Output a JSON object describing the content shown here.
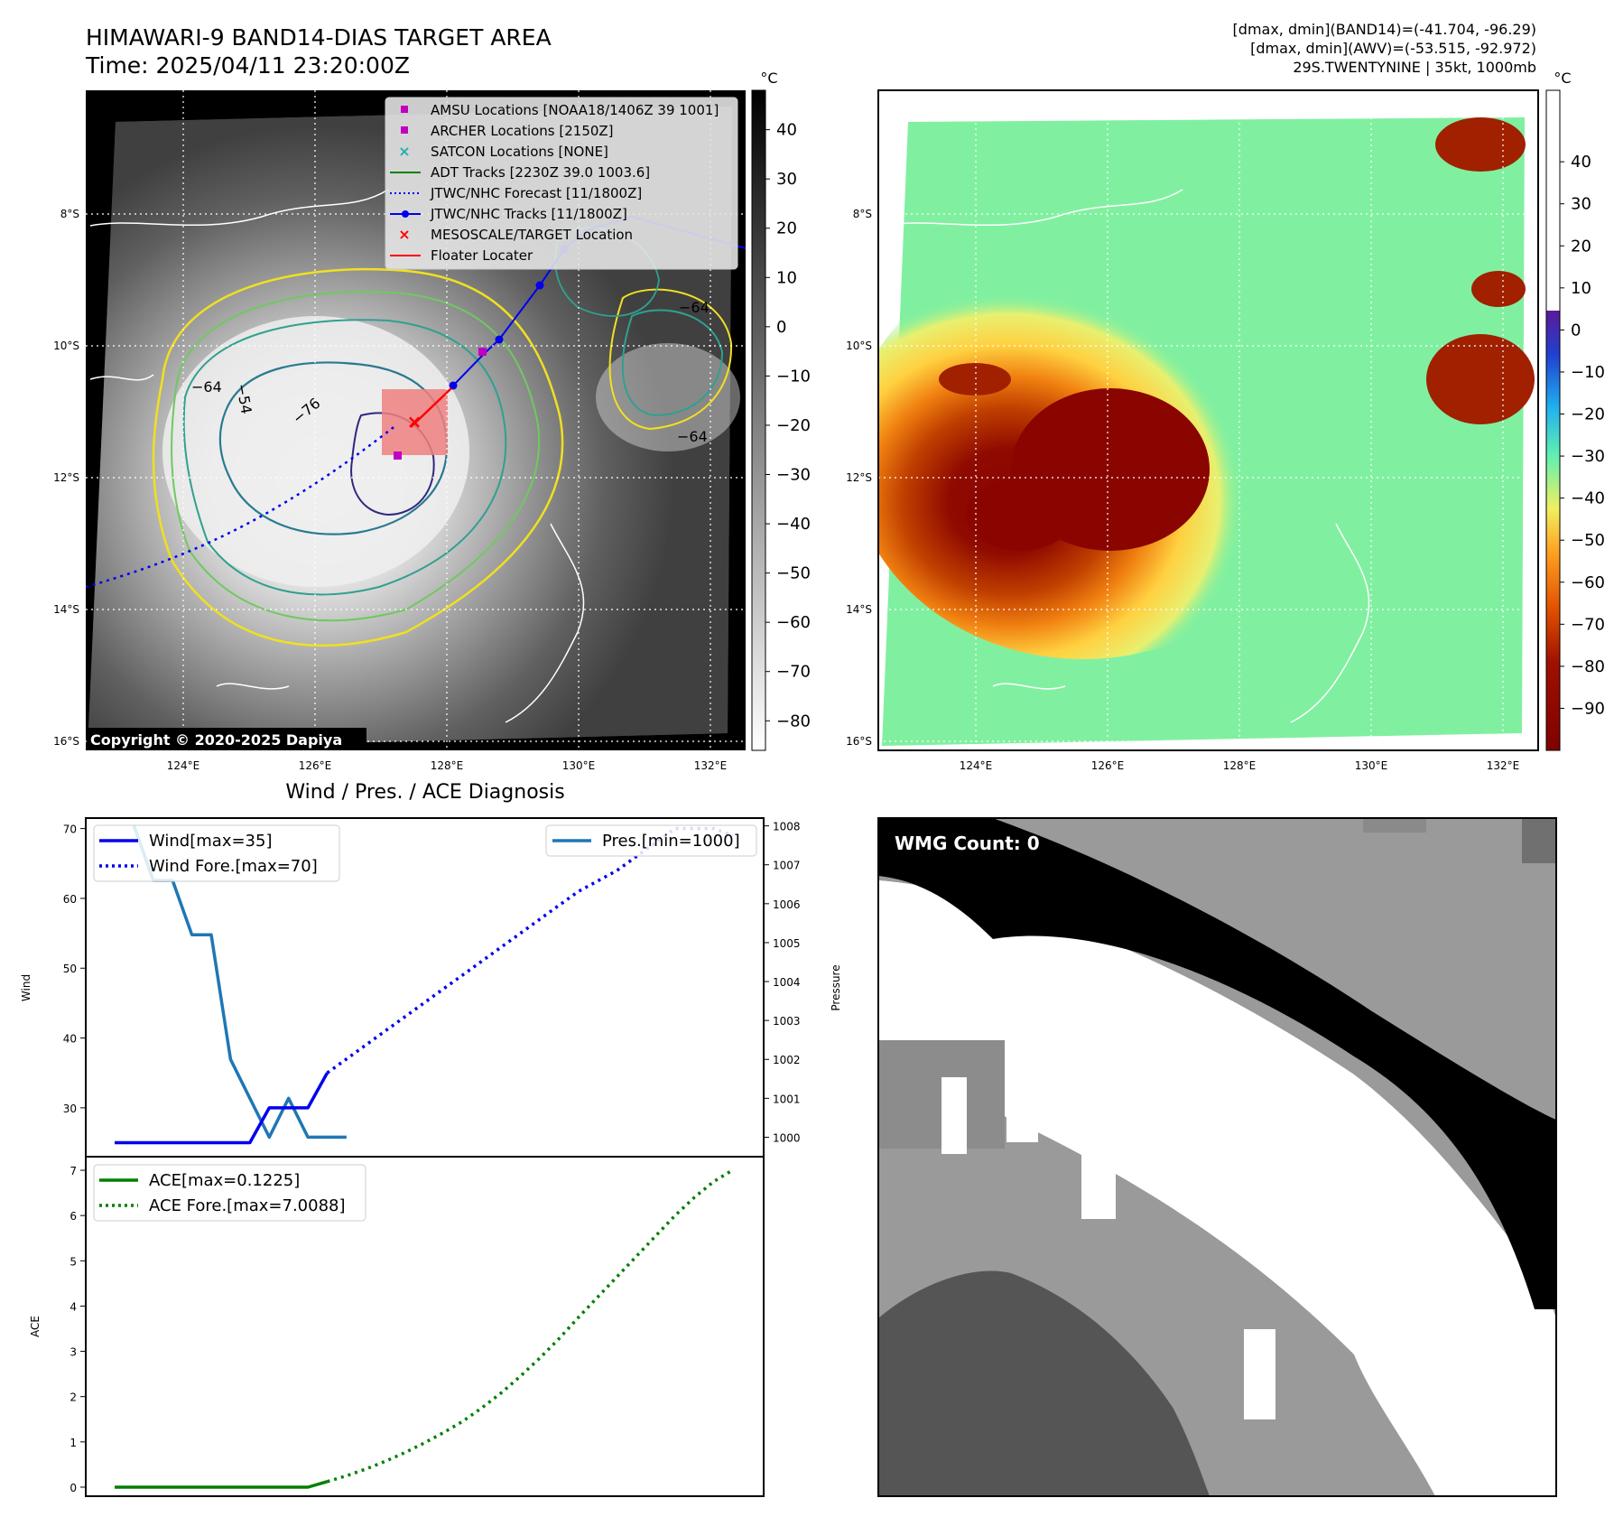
{
  "header": {
    "title_line1": "HIMAWARI-9 BAND14-DIAS TARGET AREA",
    "title_line2": "Time: 2025/04/11 23:20:00Z",
    "info_line1": "[dmax, dmin](BAND14)=(-41.704, -96.29)",
    "info_line2": "[dmax, dmin](AWV)=(-53.515, -92.972)",
    "info_line3": "29S.TWENTYNINE | 35kt, 1000mb"
  },
  "ir_panel": {
    "cb_unit": "°C",
    "cb_ticks": [
      "40",
      "30",
      "20",
      "10",
      "0",
      "−10",
      "−20",
      "−30",
      "−40",
      "−50",
      "−60",
      "−70",
      "−80"
    ],
    "lat_labels": [
      "8°S",
      "10°S",
      "12°S",
      "14°S",
      "16°S"
    ],
    "lon_labels": [
      "124°E",
      "126°E",
      "128°E",
      "130°E",
      "132°E"
    ],
    "copyright": "Copyright © 2020-2025 Dapiya",
    "contour_labels": [
      "−64",
      "−76",
      "−54",
      "−64",
      "−64"
    ],
    "legend": [
      {
        "label": "AMSU Locations [NOAA18/1406Z 39 1001]",
        "marker": "square",
        "color": "#c000c0"
      },
      {
        "label": "ARCHER Locations [2150Z]",
        "marker": "square",
        "color": "#c000c0"
      },
      {
        "label": "SATCON Locations [NONE]",
        "marker": "x",
        "color": "#20b0b0"
      },
      {
        "label": "ADT Tracks [2230Z 39.0 1003.6]",
        "marker": "line",
        "color": "#008000"
      },
      {
        "label": "JTWC/NHC Forecast [11/1800Z]",
        "marker": "dotted",
        "color": "#0000ff"
      },
      {
        "label": "JTWC/NHC Tracks [11/1800Z]",
        "marker": "line-dot",
        "color": "#0000ff"
      },
      {
        "label": "MESOSCALE/TARGET Location",
        "marker": "x",
        "color": "#ff0000"
      },
      {
        "label": "Floater Locater",
        "marker": "line",
        "color": "#ff0000"
      }
    ]
  },
  "awv_panel": {
    "cb_unit": "°C",
    "cb_ticks": [
      "40",
      "30",
      "20",
      "10",
      "0",
      "−10",
      "−20",
      "−30",
      "−40",
      "−50",
      "−60",
      "−70",
      "−80",
      "−90"
    ],
    "lat_labels": [
      "8°S",
      "10°S",
      "12°S",
      "14°S",
      "16°S"
    ],
    "lon_labels": [
      "124°E",
      "126°E",
      "128°E",
      "130°E",
      "132°E"
    ]
  },
  "diag_panel": {
    "title": "Wind / Pres. / ACE Diagnosis",
    "wind_ylabel": "Wind",
    "pres_ylabel": "Pressure",
    "ace_ylabel": "ACE",
    "legend_wind": "Wind[max=35]",
    "legend_wind_fore": "Wind Fore.[max=70]",
    "legend_pres": "Pres.[min=1000]",
    "legend_ace": "ACE[max=0.1225]",
    "legend_ace_fore": "ACE Fore.[max=7.0088]",
    "colors": {
      "wind": "#0000ee",
      "pres": "#1f77b4",
      "ace": "#008000"
    }
  },
  "wmg_panel": {
    "label": "WMG Count: 0"
  },
  "chart_data": [
    {
      "type": "line",
      "title": "Wind / Pres. / ACE Diagnosis",
      "ylabel": "Wind",
      "ylim": [
        23,
        71.5
      ],
      "y_ticks": [
        30,
        40,
        50,
        60,
        70
      ],
      "series": [
        {
          "name": "Wind[max=35]",
          "style": "solid",
          "x": [
            0,
            1,
            2,
            3,
            4,
            5,
            6,
            7,
            8,
            9,
            10,
            11
          ],
          "values": [
            25,
            25,
            25,
            25,
            25,
            25,
            25,
            25,
            30,
            30,
            30,
            35
          ]
        },
        {
          "name": "Wind Fore.[max=70]",
          "style": "dotted",
          "x": [
            11,
            12,
            13,
            14,
            15,
            16,
            17,
            18,
            19,
            20,
            21,
            22,
            23,
            24,
            25,
            26,
            27,
            28,
            29,
            30,
            31,
            32
          ],
          "values": [
            35,
            37,
            39,
            41,
            43,
            45,
            47,
            49,
            51,
            53,
            55,
            57,
            59,
            61,
            62.5,
            64,
            66,
            68,
            70,
            70,
            70,
            69
          ]
        }
      ]
    },
    {
      "type": "line",
      "ylabel": "Pressure",
      "ylim": [
        999.5,
        1008.2
      ],
      "y_ticks": [
        1000,
        1001,
        1002,
        1003,
        1004,
        1005,
        1006,
        1007,
        1008
      ],
      "series": [
        {
          "name": "Pres.[min=1000]",
          "x": [
            1,
            2,
            3,
            4,
            5,
            6,
            7,
            8,
            9,
            10,
            11,
            12
          ],
          "values": [
            1008,
            1006.6,
            1006.6,
            1005.2,
            1005.2,
            1002,
            1001,
            1000,
            1001,
            1000,
            1000,
            1000
          ]
        }
      ]
    },
    {
      "type": "line",
      "ylabel": "ACE",
      "ylim": [
        -0.2,
        7.3
      ],
      "y_ticks": [
        0,
        1,
        2,
        3,
        4,
        5,
        6,
        7
      ],
      "series": [
        {
          "name": "ACE[max=0.1225]",
          "style": "solid",
          "x": [
            0,
            1,
            2,
            3,
            4,
            5,
            6,
            7,
            8,
            9,
            10,
            11
          ],
          "values": [
            0,
            0,
            0,
            0,
            0,
            0,
            0,
            0,
            0,
            0,
            0,
            0.1225
          ]
        },
        {
          "name": "ACE Fore.[max=7.0088]",
          "style": "dotted",
          "x": [
            11,
            12,
            13,
            14,
            15,
            16,
            17,
            18,
            19,
            20,
            21,
            22,
            23,
            24,
            25,
            26,
            27,
            28,
            29,
            30,
            31,
            32
          ],
          "values": [
            0.1225,
            0.25,
            0.4,
            0.57,
            0.76,
            0.97,
            1.2,
            1.45,
            1.75,
            2.08,
            2.45,
            2.85,
            3.28,
            3.75,
            4.2,
            4.65,
            5.1,
            5.55,
            6.0,
            6.4,
            6.75,
            7.0088
          ]
        }
      ]
    }
  ]
}
